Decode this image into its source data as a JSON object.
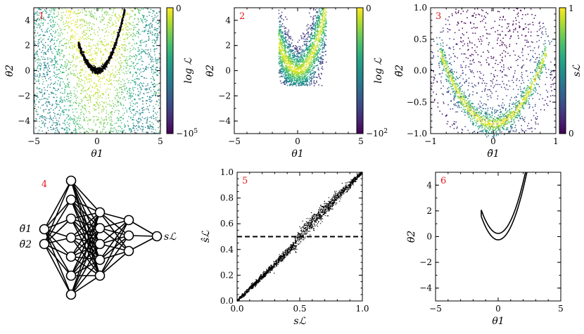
{
  "figure": {
    "description_free": true
  },
  "chart_data": [
    {
      "id": "panel-1",
      "panel_label": "1",
      "type": "scatter",
      "xlabel": "θ1",
      "ylabel": "θ2",
      "xlim": [
        -5,
        5
      ],
      "ylim": [
        -5,
        5
      ],
      "xticks": [
        "-5",
        "0",
        "5"
      ],
      "yticks": [
        "-4",
        "-2",
        "0",
        "2",
        "4"
      ],
      "colorbar": {
        "label": "log ℒ",
        "top_tick": "0",
        "bottom_tick": "-10^5"
      },
      "series": [
        {
          "name": "uniform samples",
          "color_scale": "viridis",
          "points": 2600,
          "region": "full box"
        },
        {
          "name": "high-likelihood curve",
          "color": "#000000",
          "curve": "theta2 = theta1^2",
          "x_range": [
            -1.5,
            2.2
          ]
        }
      ]
    },
    {
      "id": "panel-2",
      "panel_label": "2",
      "type": "scatter",
      "xlabel": "θ1",
      "ylabel": "θ2",
      "xlim": [
        -5,
        5
      ],
      "ylim": [
        -5,
        5
      ],
      "xticks": [
        "-5",
        "0",
        "5"
      ],
      "yticks": [
        "-4",
        "-2",
        "0",
        "2",
        "4"
      ],
      "colorbar": {
        "label": "log ℒ",
        "top_tick": "0",
        "bottom_tick": "-10^2"
      },
      "series": [
        {
          "name": "filtered samples",
          "color_scale": "viridis",
          "curve": "theta2 = theta1^2",
          "x_range": [
            -1.5,
            2.3
          ]
        }
      ]
    },
    {
      "id": "panel-3",
      "panel_label": "3",
      "type": "scatter",
      "xlabel": "θ̃1",
      "ylabel": "θ̃2",
      "xlim": [
        -1,
        1
      ],
      "ylim": [
        -1,
        1
      ],
      "xticks": [
        "-1",
        "0",
        "1"
      ],
      "yticks": [
        "-1.0",
        "-0.5",
        "0.0",
        "0.5",
        "1.0"
      ],
      "colorbar": {
        "label": "sℒ",
        "top_tick": "1",
        "bottom_tick": "0"
      },
      "series": [
        {
          "name": "normalized samples",
          "color_scale": "viridis",
          "curve": "y = 1.6 x^2 - 0.85",
          "x_range": [
            -0.85,
            0.85
          ]
        }
      ]
    },
    {
      "id": "panel-4",
      "panel_label": "4",
      "type": "diagram",
      "inputs": [
        "θ̃1",
        "θ̃2"
      ],
      "output": "sℒ",
      "layers": [
        2,
        7,
        5,
        3,
        1
      ]
    },
    {
      "id": "panel-5",
      "panel_label": "5",
      "type": "scatter",
      "xlabel": "sℒ",
      "ylabel": "ŝℒ",
      "xlim": [
        0,
        1
      ],
      "ylim": [
        0,
        1
      ],
      "xticks": [
        "0.0",
        "0.5",
        "1.0"
      ],
      "yticks": [
        "0.0",
        "0.2",
        "0.4",
        "0.6",
        "0.8",
        "1.0"
      ],
      "hline": 0.5,
      "series": [
        {
          "name": "predicted vs true",
          "color": "#000000",
          "relation": "y ≈ x"
        }
      ]
    },
    {
      "id": "panel-6",
      "panel_label": "6",
      "type": "line",
      "xlabel": "θ1",
      "ylabel": "θ2",
      "xlim": [
        -5,
        5
      ],
      "ylim": [
        -5,
        5
      ],
      "xticks": [
        "-5",
        "0",
        "5"
      ],
      "yticks": [
        "-4",
        "-2",
        "0",
        "2",
        "4"
      ],
      "series": [
        {
          "name": "upper contour",
          "color": "#000000",
          "curve": "theta2 = theta1^2 + 0.25",
          "x_range": [
            -1.35,
            2.2
          ]
        },
        {
          "name": "lower contour",
          "color": "#000000",
          "curve": "theta2 = theta1^2 - 0.25",
          "x_range": [
            -1.35,
            2.3
          ]
        }
      ]
    }
  ]
}
